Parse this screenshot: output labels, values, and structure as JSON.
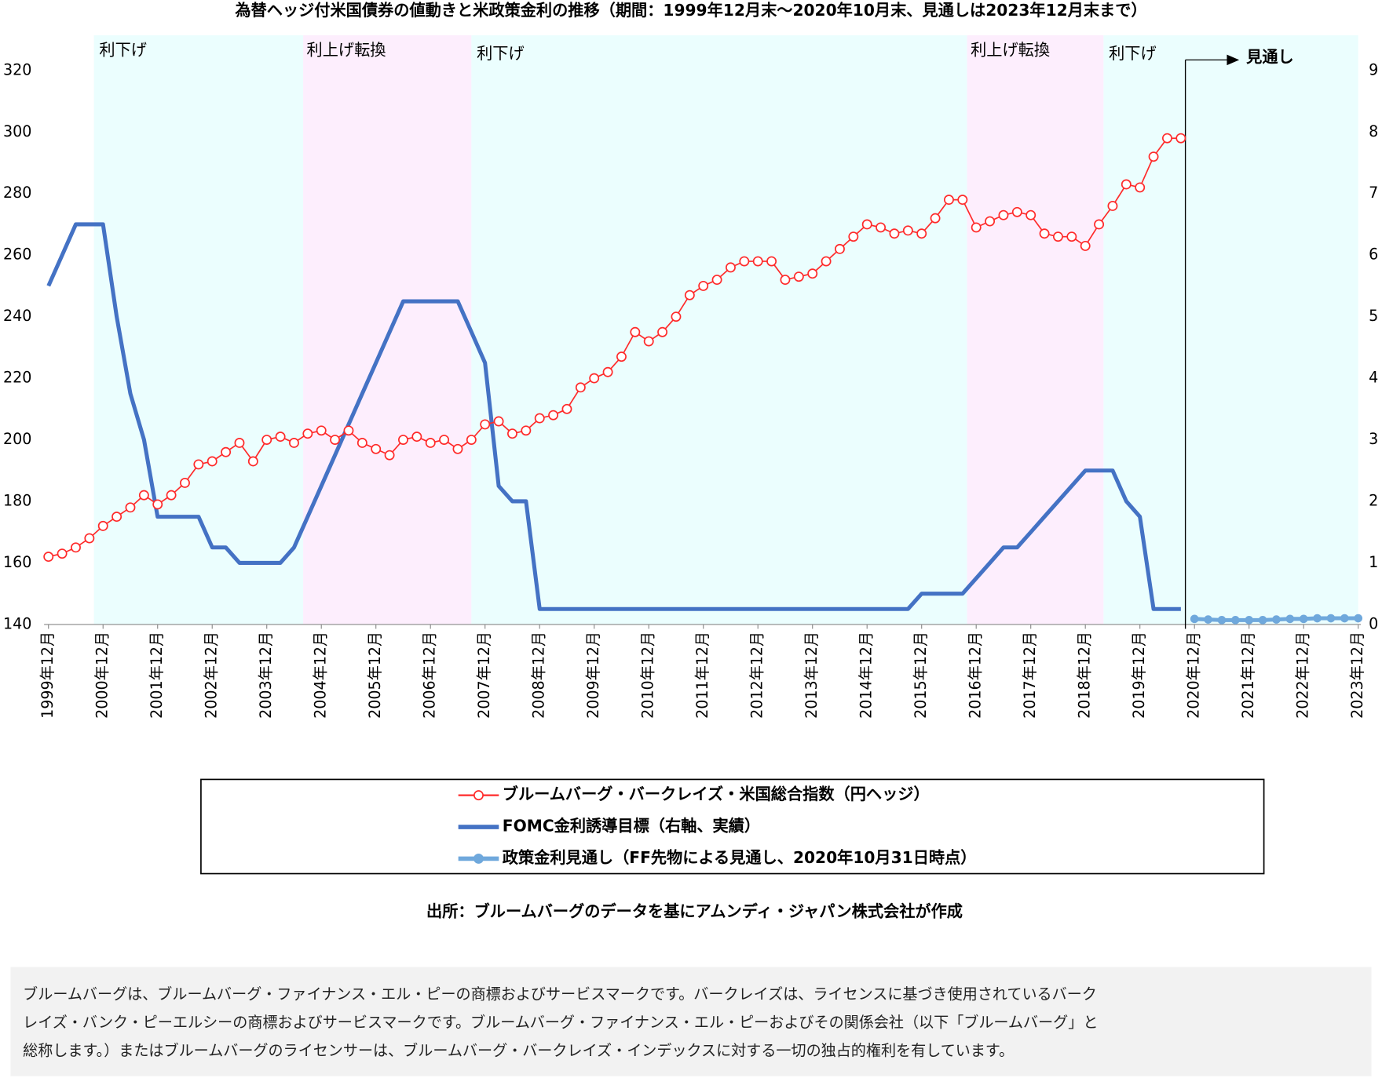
{
  "chart_data": {
    "type": "line",
    "title": "為替ヘッジ付米国債券の値動きと米政策金利の推移（期間：1999年12月末～2020年10月末、見通しは2023年12月末まで）",
    "x": [
      "1999-12",
      "2000-03",
      "2000-06",
      "2000-09",
      "2000-12",
      "2001-03",
      "2001-06",
      "2001-09",
      "2001-12",
      "2002-03",
      "2002-06",
      "2002-09",
      "2002-12",
      "2003-03",
      "2003-06",
      "2003-09",
      "2003-12",
      "2004-03",
      "2004-06",
      "2004-09",
      "2004-12",
      "2005-03",
      "2005-06",
      "2005-09",
      "2005-12",
      "2006-03",
      "2006-06",
      "2006-09",
      "2006-12",
      "2007-03",
      "2007-06",
      "2007-09",
      "2007-12",
      "2008-03",
      "2008-06",
      "2008-09",
      "2008-12",
      "2009-03",
      "2009-06",
      "2009-09",
      "2009-12",
      "2010-03",
      "2010-06",
      "2010-09",
      "2010-12",
      "2011-03",
      "2011-06",
      "2011-09",
      "2011-12",
      "2012-03",
      "2012-06",
      "2012-09",
      "2012-12",
      "2013-03",
      "2013-06",
      "2013-09",
      "2013-12",
      "2014-03",
      "2014-06",
      "2014-09",
      "2014-12",
      "2015-03",
      "2015-06",
      "2015-09",
      "2015-12",
      "2016-03",
      "2016-06",
      "2016-09",
      "2016-12",
      "2017-03",
      "2017-06",
      "2017-09",
      "2017-12",
      "2018-03",
      "2018-06",
      "2018-09",
      "2018-12",
      "2019-03",
      "2019-06",
      "2019-09",
      "2019-12",
      "2020-03",
      "2020-06",
      "2020-09",
      "2020-12",
      "2021-03",
      "2021-06",
      "2021-09",
      "2021-12",
      "2022-03",
      "2022-06",
      "2022-09",
      "2022-12",
      "2023-03",
      "2023-06",
      "2023-09",
      "2023-12"
    ],
    "xlim": [
      "1999-12",
      "2023-12"
    ],
    "xticks": [
      {
        "value": "1999-12",
        "label": "1999年12月"
      },
      {
        "value": "2000-12",
        "label": "2000年12月"
      },
      {
        "value": "2001-12",
        "label": "2001年12月"
      },
      {
        "value": "2002-12",
        "label": "2002年12月"
      },
      {
        "value": "2003-12",
        "label": "2003年12月"
      },
      {
        "value": "2004-12",
        "label": "2004年12月"
      },
      {
        "value": "2005-12",
        "label": "2005年12月"
      },
      {
        "value": "2006-12",
        "label": "2006年12月"
      },
      {
        "value": "2007-12",
        "label": "2007年12月"
      },
      {
        "value": "2008-12",
        "label": "2008年12月"
      },
      {
        "value": "2009-12",
        "label": "2009年12月"
      },
      {
        "value": "2010-12",
        "label": "2010年12月"
      },
      {
        "value": "2011-12",
        "label": "2011年12月"
      },
      {
        "value": "2012-12",
        "label": "2012年12月"
      },
      {
        "value": "2013-12",
        "label": "2013年12月"
      },
      {
        "value": "2014-12",
        "label": "2014年12月"
      },
      {
        "value": "2015-12",
        "label": "2015年12月"
      },
      {
        "value": "2016-12",
        "label": "2016年12月"
      },
      {
        "value": "2017-12",
        "label": "2017年12月"
      },
      {
        "value": "2018-12",
        "label": "2018年12月"
      },
      {
        "value": "2019-12",
        "label": "2019年12月"
      },
      {
        "value": "2020-12",
        "label": "2020年12月"
      },
      {
        "value": "2021-12",
        "label": "2021年12月"
      },
      {
        "value": "2022-12",
        "label": "2022年12月"
      },
      {
        "value": "2023-12",
        "label": "2023年12月"
      }
    ],
    "ylim": [
      140,
      320
    ],
    "yticks": [
      140,
      160,
      180,
      200,
      220,
      240,
      260,
      280,
      300,
      320
    ],
    "y2lim": [
      0,
      9
    ],
    "y2ticks": [
      0,
      1,
      2,
      3,
      4,
      5,
      6,
      7,
      8,
      9
    ],
    "series": [
      {
        "name": "ブルームバーグ・バークレイズ・米国総合指数（円ヘッジ）",
        "color": "#ff2a2a",
        "marker": "hollow-circle",
        "values": [
          162,
          163,
          165,
          168,
          172,
          175,
          178,
          182,
          179,
          182,
          186,
          192,
          193,
          196,
          199,
          193,
          200,
          201,
          199,
          202,
          203,
          200,
          203,
          199,
          197,
          195,
          200,
          201,
          199,
          200,
          197,
          200,
          205,
          206,
          202,
          203,
          207,
          208,
          210,
          217,
          220,
          222,
          227,
          235,
          232,
          235,
          240,
          247,
          250,
          252,
          256,
          258,
          258,
          258,
          252,
          253,
          254,
          258,
          262,
          266,
          270,
          269,
          267,
          268,
          267,
          272,
          278,
          278,
          269,
          271,
          273,
          274,
          273,
          267,
          266,
          266,
          263,
          270,
          276,
          283,
          282,
          292,
          298,
          298,
          null,
          null,
          null,
          null,
          null,
          null,
          null,
          null,
          null,
          null,
          null,
          null,
          null
        ]
      },
      {
        "name": "FOMC金利誘導目標（右軸、実績）",
        "color": "#4472c4",
        "axis": "y2",
        "values": [
          5.5,
          6.0,
          6.5,
          6.5,
          6.5,
          5.0,
          3.75,
          3.0,
          1.75,
          1.75,
          1.75,
          1.75,
          1.25,
          1.25,
          1.0,
          1.0,
          1.0,
          1.0,
          1.25,
          1.75,
          2.25,
          2.75,
          3.25,
          3.75,
          4.25,
          4.75,
          5.25,
          5.25,
          5.25,
          5.25,
          5.25,
          4.75,
          4.25,
          2.25,
          2.0,
          2.0,
          0.25,
          0.25,
          0.25,
          0.25,
          0.25,
          0.25,
          0.25,
          0.25,
          0.25,
          0.25,
          0.25,
          0.25,
          0.25,
          0.25,
          0.25,
          0.25,
          0.25,
          0.25,
          0.25,
          0.25,
          0.25,
          0.25,
          0.25,
          0.25,
          0.25,
          0.25,
          0.25,
          0.25,
          0.5,
          0.5,
          0.5,
          0.5,
          0.75,
          1.0,
          1.25,
          1.25,
          1.5,
          1.75,
          2.0,
          2.25,
          2.5,
          2.5,
          2.5,
          2.0,
          1.75,
          0.25,
          0.25,
          0.25,
          null,
          null,
          null,
          null,
          null,
          null,
          null,
          null,
          null,
          null,
          null,
          null,
          null
        ]
      },
      {
        "name": "政策金利見通し（FF先物による見通し、2020年10月31日時点）",
        "color": "#6fa8dc",
        "axis": "y2",
        "marker": "filled-circle",
        "values": [
          null,
          null,
          null,
          null,
          null,
          null,
          null,
          null,
          null,
          null,
          null,
          null,
          null,
          null,
          null,
          null,
          null,
          null,
          null,
          null,
          null,
          null,
          null,
          null,
          null,
          null,
          null,
          null,
          null,
          null,
          null,
          null,
          null,
          null,
          null,
          null,
          null,
          null,
          null,
          null,
          null,
          null,
          null,
          null,
          null,
          null,
          null,
          null,
          null,
          null,
          null,
          null,
          null,
          null,
          null,
          null,
          null,
          null,
          null,
          null,
          null,
          null,
          null,
          null,
          null,
          null,
          null,
          null,
          null,
          null,
          null,
          null,
          null,
          null,
          null,
          null,
          null,
          null,
          null,
          null,
          null,
          null,
          null,
          null,
          0.09,
          0.08,
          0.07,
          0.07,
          0.07,
          0.07,
          0.08,
          0.09,
          0.09,
          0.1,
          0.1,
          0.1,
          0.1
        ]
      }
    ],
    "regions": [
      {
        "label": "利下げ",
        "start": "2000-10",
        "end": "2004-08",
        "color": "#ebfefe"
      },
      {
        "label": "利上げ転換",
        "start": "2004-08",
        "end": "2007-09",
        "color": "#fdeefd"
      },
      {
        "label": "利下げ",
        "start": "2007-09",
        "end": "2016-10",
        "color": "#ebfefe"
      },
      {
        "label": "利上げ転換",
        "start": "2016-10",
        "end": "2019-04",
        "color": "#fdeefd"
      },
      {
        "label": "利下げ",
        "start": "2019-04",
        "end": "2023-12",
        "color": "#ebfefe"
      }
    ],
    "outlook": {
      "label": "見通し",
      "x": "2020-10"
    },
    "legend": "bottom",
    "source": "出所：ブルームバーグのデータを基にアムンディ・ジャパン株式会社が作成",
    "footnote": [
      "ブルームバーグは、ブルームバーグ・ファイナンス・エル・ピーの商標およびサービスマークです。バークレイズは、ライセンスに基づき使用されているバーク",
      "レイズ・バンク・ピーエルシーの商標およびサービスマークです。ブルームバーグ・ファイナンス・エル・ピーおよびその関係会社（以下「ブルームバーグ」と",
      "総称します。）またはブルームバーグのライセンサーは、ブルームバーグ・バークレイズ・インデックスに対する一切の独占的権利を有しています。"
    ]
  }
}
